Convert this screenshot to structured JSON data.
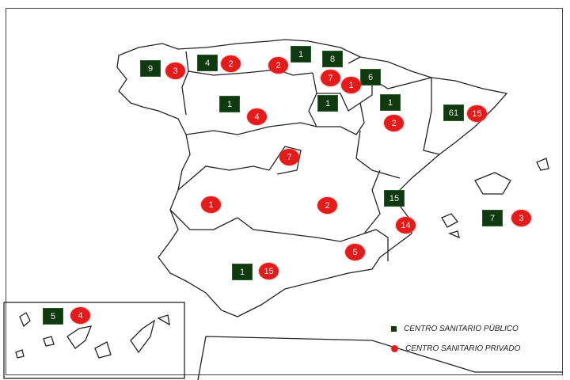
{
  "colors": {
    "public": "#0f3a10",
    "private": "#e41b1b"
  },
  "legend": {
    "public": "CENTRO SANITARIO PÚBLICO",
    "private": "CENTRO SANITARIO PRIVADO"
  },
  "markers": {
    "public": [
      {
        "region": "Galicia",
        "value": "9"
      },
      {
        "region": "Asturias",
        "value": "4"
      },
      {
        "region": "Cantabria",
        "value": "1"
      },
      {
        "region": "País Vasco",
        "value": "8"
      },
      {
        "region": "Navarra",
        "value": "6"
      },
      {
        "region": "La Rioja",
        "value": "1"
      },
      {
        "region": "Aragón",
        "value": "1"
      },
      {
        "region": "Castilla y León",
        "value": "1"
      },
      {
        "region": "Cataluña",
        "value": "61"
      },
      {
        "region": "Comunidad Valenciana",
        "value": "15"
      },
      {
        "region": "Baleares",
        "value": "7"
      },
      {
        "region": "Andalucía",
        "value": "1"
      },
      {
        "region": "Canarias",
        "value": "5"
      }
    ],
    "private": [
      {
        "region": "Galicia",
        "value": "3"
      },
      {
        "region": "Asturias",
        "value": "2"
      },
      {
        "region": "Cantabria",
        "value": "2"
      },
      {
        "region": "País Vasco",
        "value": "7"
      },
      {
        "region": "Navarra",
        "value": "1"
      },
      {
        "region": "Castilla y León",
        "value": "4"
      },
      {
        "region": "Aragón",
        "value": "2"
      },
      {
        "region": "Cataluña",
        "value": "15"
      },
      {
        "region": "Madrid",
        "value": "7"
      },
      {
        "region": "Extremadura",
        "value": "1"
      },
      {
        "region": "Castilla-La Mancha",
        "value": "2"
      },
      {
        "region": "Comunidad Valenciana",
        "value": "14"
      },
      {
        "region": "Murcia",
        "value": "5"
      },
      {
        "region": "Baleares",
        "value": "3"
      },
      {
        "region": "Andalucía",
        "value": "15"
      },
      {
        "region": "Canarias",
        "value": "4"
      }
    ]
  }
}
